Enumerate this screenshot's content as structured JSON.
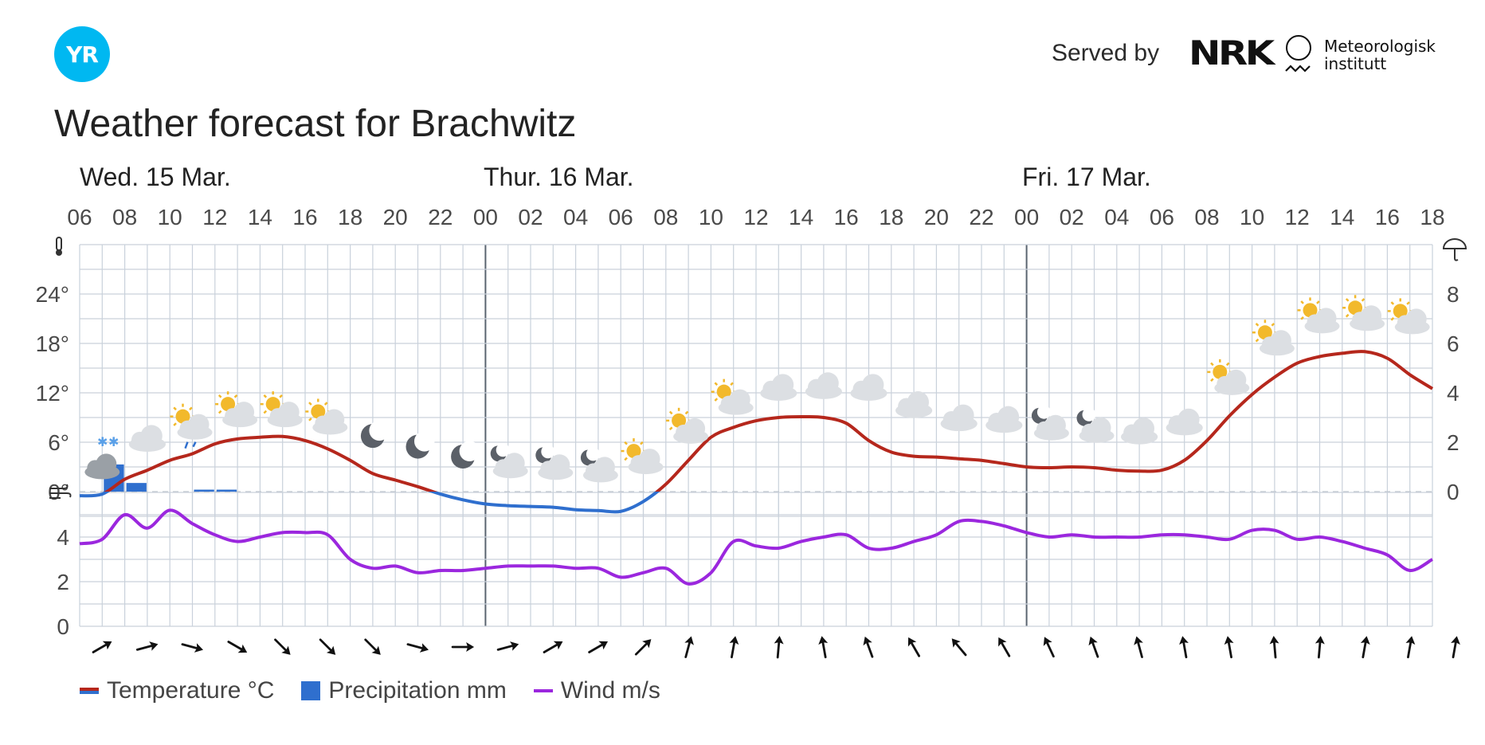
{
  "header": {
    "logo_text": "YR",
    "served_by": "Served by",
    "nrk_logo": "NRK",
    "met_line1": "Meteorologisk",
    "met_line2": "institutt"
  },
  "title": "Weather forecast for Brachwitz",
  "legend": {
    "temperature": "Temperature °C",
    "precipitation": "Precipitation mm",
    "wind": "Wind m/s"
  },
  "colors": {
    "temp_positive": "#b5271c",
    "temp_negative": "#2f6fce",
    "precipitation": "#2f6fce",
    "wind": "#9b27de",
    "grid": "#c9d1db",
    "brand": "#00b8f1"
  },
  "chart_data": {
    "type": "line",
    "days": [
      {
        "label": "Wed. 15 Mar.",
        "start_x": 6
      },
      {
        "label": "Thur. 16 Mar.",
        "start_x": 24
      },
      {
        "label": "Fri. 17 Mar.",
        "start_x": 48
      }
    ],
    "x_ticks": [
      "06",
      "08",
      "10",
      "12",
      "14",
      "16",
      "18",
      "20",
      "22",
      "00",
      "02",
      "04",
      "06",
      "08",
      "10",
      "12",
      "14",
      "16",
      "18",
      "20",
      "22",
      "00",
      "02",
      "04",
      "06",
      "08",
      "10",
      "12",
      "14",
      "16",
      "18"
    ],
    "x_range": [
      6,
      66
    ],
    "temperature": {
      "y_ticks": [
        "0°",
        "6°",
        "12°",
        "18°",
        "24°"
      ],
      "ylim": [
        -3,
        30
      ],
      "x": [
        6,
        7,
        8,
        9,
        10,
        11,
        12,
        13,
        14,
        15,
        16,
        17,
        18,
        19,
        20,
        21,
        22,
        23,
        24,
        25,
        26,
        27,
        28,
        29,
        30,
        31,
        32,
        33,
        34,
        35,
        36,
        37,
        38,
        39,
        40,
        41,
        42,
        43,
        44,
        45,
        46,
        47,
        48,
        49,
        50,
        51,
        52,
        53,
        54,
        55,
        56,
        57,
        58,
        59,
        60,
        61,
        62,
        63,
        64,
        65,
        66
      ],
      "values": [
        -0.5,
        -0.3,
        1.5,
        2.6,
        3.8,
        4.6,
        5.8,
        6.4,
        6.6,
        6.7,
        6.2,
        5.2,
        3.8,
        2.2,
        1.4,
        0.6,
        -0.3,
        -1.0,
        -1.5,
        -1.7,
        -1.8,
        -1.9,
        -2.2,
        -2.3,
        -2.4,
        -1.2,
        0.9,
        3.8,
        6.6,
        7.8,
        8.6,
        9.0,
        9.1,
        9.0,
        8.3,
        6.2,
        4.8,
        4.3,
        4.2,
        4.0,
        3.8,
        3.4,
        3.0,
        2.9,
        3.0,
        2.9,
        2.6,
        2.5,
        2.6,
        3.8,
        6.2,
        9.2,
        11.8,
        13.9,
        15.6,
        16.4,
        16.8,
        17.0,
        16.2,
        14.2,
        12.5
      ]
    },
    "precipitation": {
      "y_ticks": [
        "0",
        "2",
        "4",
        "6",
        "8"
      ],
      "ylim": [
        0,
        10
      ],
      "bars": [
        {
          "x": 7,
          "value": 1.1
        },
        {
          "x": 8,
          "value": 0.35
        },
        {
          "x": 11,
          "value": 0.08
        },
        {
          "x": 12,
          "value": 0.08
        }
      ]
    },
    "wind": {
      "y_ticks": [
        "0",
        "2",
        "4"
      ],
      "ylim": [
        0,
        6
      ],
      "x": [
        6,
        7,
        8,
        9,
        10,
        11,
        12,
        13,
        14,
        15,
        16,
        17,
        18,
        19,
        20,
        21,
        22,
        23,
        24,
        25,
        26,
        27,
        28,
        29,
        30,
        31,
        32,
        33,
        34,
        35,
        36,
        37,
        38,
        39,
        40,
        41,
        42,
        43,
        44,
        45,
        46,
        47,
        48,
        49,
        50,
        51,
        52,
        53,
        54,
        55,
        56,
        57,
        58,
        59,
        60,
        61,
        62,
        63,
        64,
        65,
        66
      ],
      "values": [
        3.7,
        3.9,
        5.0,
        4.4,
        5.2,
        4.6,
        4.1,
        3.8,
        4.0,
        4.2,
        4.2,
        4.1,
        3.0,
        2.6,
        2.7,
        2.4,
        2.5,
        2.5,
        2.6,
        2.7,
        2.7,
        2.7,
        2.6,
        2.6,
        2.2,
        2.4,
        2.6,
        1.9,
        2.4,
        3.8,
        3.6,
        3.5,
        3.8,
        4.0,
        4.1,
        3.5,
        3.5,
        3.8,
        4.1,
        4.7,
        4.7,
        4.5,
        4.2,
        4.0,
        4.1,
        4.0,
        4.0,
        4.0,
        4.1,
        4.1,
        4.0,
        3.9,
        4.3,
        4.3,
        3.9,
        4.0,
        3.8,
        3.5,
        3.2,
        2.5,
        3.0
      ]
    },
    "wind_directions_deg": [
      60,
      75,
      105,
      120,
      135,
      135,
      135,
      105,
      90,
      75,
      60,
      60,
      45,
      15,
      10,
      5,
      350,
      340,
      330,
      320,
      330,
      335,
      340,
      345,
      350,
      350,
      355,
      5,
      10,
      10,
      10
    ],
    "weather_icons": [
      {
        "x": 7,
        "icon": "cloudy-snow-icon",
        "temp": 1.8
      },
      {
        "x": 9,
        "icon": "cloudy-icon",
        "temp": 5.2
      },
      {
        "x": 11,
        "icon": "partly-cloudy-day-rain-icon",
        "temp": 7.0
      },
      {
        "x": 13,
        "icon": "partly-cloudy-day-icon",
        "temp": 8.5
      },
      {
        "x": 15,
        "icon": "partly-cloudy-day-icon",
        "temp": 8.5
      },
      {
        "x": 17,
        "icon": "partly-cloudy-day-icon",
        "temp": 7.6
      },
      {
        "x": 19,
        "icon": "moon-icon",
        "temp": 5.6
      },
      {
        "x": 21,
        "icon": "moon-icon",
        "temp": 4.3
      },
      {
        "x": 23,
        "icon": "moon-icon",
        "temp": 3.1
      },
      {
        "x": 25,
        "icon": "partly-cloudy-night-icon",
        "temp": 2.3
      },
      {
        "x": 27,
        "icon": "partly-cloudy-night-icon",
        "temp": 2.1
      },
      {
        "x": 29,
        "icon": "partly-cloudy-night-icon",
        "temp": 1.8
      },
      {
        "x": 31,
        "icon": "partly-cloudy-day-icon",
        "temp": 2.8
      },
      {
        "x": 33,
        "icon": "partly-cloudy-day-icon",
        "temp": 6.5
      },
      {
        "x": 35,
        "icon": "partly-cloudy-day-icon",
        "temp": 10.0
      },
      {
        "x": 37,
        "icon": "cloudy-icon",
        "temp": 11.4
      },
      {
        "x": 39,
        "icon": "cloudy-icon",
        "temp": 11.6
      },
      {
        "x": 41,
        "icon": "cloudy-icon",
        "temp": 11.4
      },
      {
        "x": 43,
        "icon": "cloudy-icon",
        "temp": 9.3
      },
      {
        "x": 45,
        "icon": "cloudy-icon",
        "temp": 7.7
      },
      {
        "x": 47,
        "icon": "cloudy-icon",
        "temp": 7.5
      },
      {
        "x": 49,
        "icon": "partly-cloudy-night-icon",
        "temp": 6.9
      },
      {
        "x": 51,
        "icon": "partly-cloudy-night-icon",
        "temp": 6.6
      },
      {
        "x": 53,
        "icon": "cloudy-icon",
        "temp": 6.1
      },
      {
        "x": 55,
        "icon": "cloudy-icon",
        "temp": 7.2
      },
      {
        "x": 57,
        "icon": "partly-cloudy-day-icon",
        "temp": 12.4
      },
      {
        "x": 59,
        "icon": "partly-cloudy-day-icon",
        "temp": 17.2
      },
      {
        "x": 61,
        "icon": "partly-cloudy-day-icon",
        "temp": 19.9
      },
      {
        "x": 63,
        "icon": "partly-cloudy-day-icon",
        "temp": 20.2
      },
      {
        "x": 65,
        "icon": "partly-cloudy-day-icon",
        "temp": 19.8
      }
    ]
  }
}
